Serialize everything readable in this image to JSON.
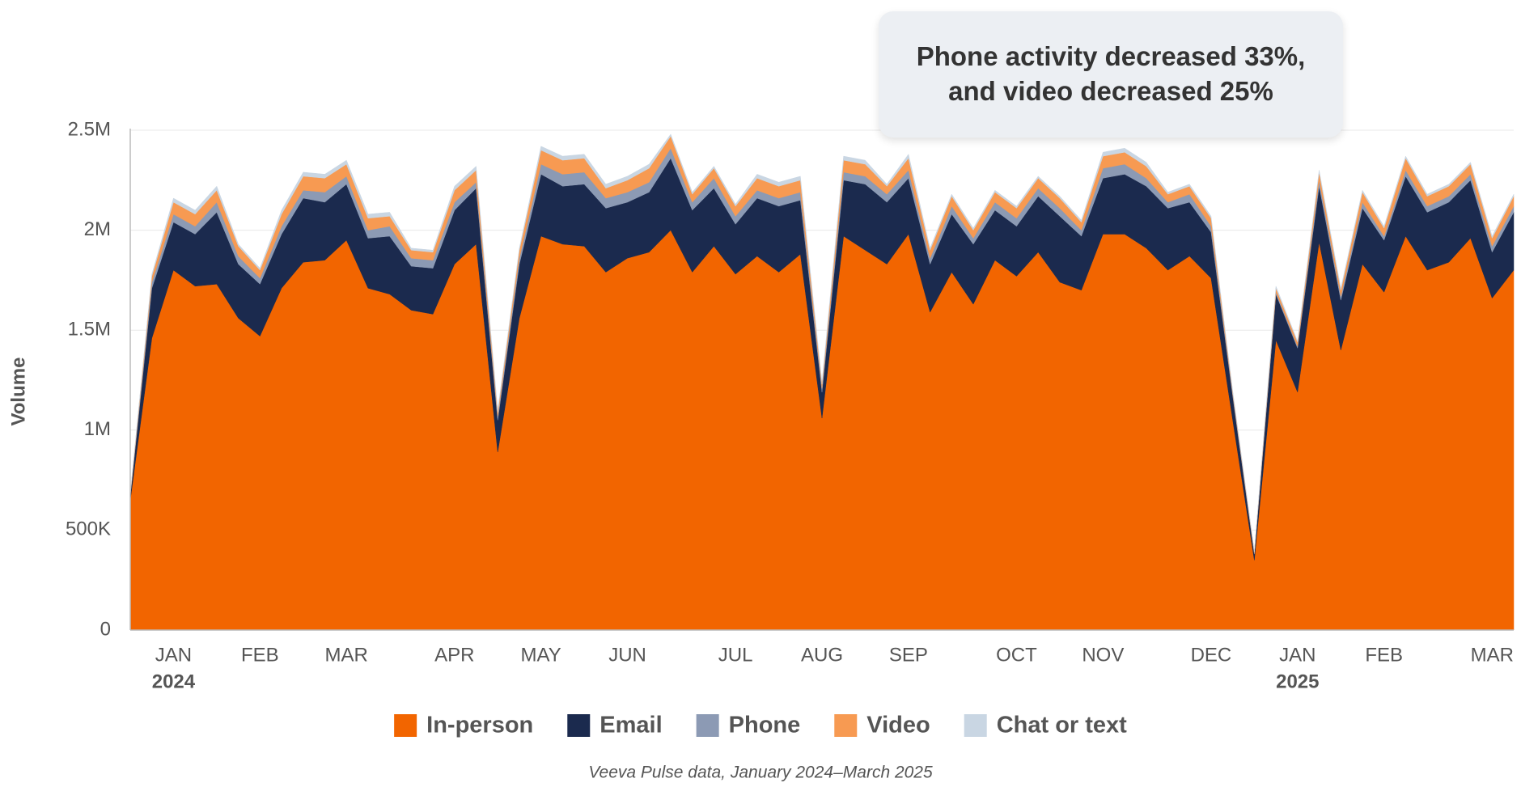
{
  "chart_data": {
    "type": "stacked_area",
    "annotation": [
      "Phone activity decreased 33%,",
      "and video decreased 25%"
    ],
    "y_label": "Volume",
    "source": "Veeva Pulse data, January 2024–March 2025",
    "categories": [
      null,
      null,
      "JAN",
      null,
      null,
      null,
      "FEB",
      null,
      null,
      null,
      "MAR",
      null,
      null,
      null,
      null,
      "APR",
      null,
      null,
      null,
      "MAY",
      null,
      null,
      null,
      "JUN",
      null,
      null,
      null,
      null,
      "JUL",
      null,
      null,
      null,
      "AUG",
      null,
      null,
      null,
      "SEP",
      null,
      null,
      null,
      null,
      "OCT",
      null,
      null,
      null,
      "NOV",
      null,
      null,
      null,
      null,
      "DEC",
      null,
      null,
      null,
      "JAN",
      null,
      null,
      null,
      "FEB",
      null,
      null,
      null,
      null,
      "MAR",
      null
    ],
    "category_years": [
      null,
      null,
      "2024",
      null,
      null,
      null,
      null,
      null,
      null,
      null,
      null,
      null,
      null,
      null,
      null,
      null,
      null,
      null,
      null,
      null,
      null,
      null,
      null,
      null,
      null,
      null,
      null,
      null,
      null,
      null,
      null,
      null,
      null,
      null,
      null,
      null,
      null,
      null,
      null,
      null,
      null,
      null,
      null,
      null,
      null,
      null,
      null,
      null,
      null,
      null,
      null,
      null,
      null,
      null,
      "2025",
      null,
      null,
      null,
      null,
      null,
      null,
      null,
      null,
      null,
      null
    ],
    "ylim": [
      0,
      2500000
    ],
    "yticks": [
      0,
      {
        "value": 500000,
        "label": "500K"
      },
      {
        "value": 1000000,
        "label": "1M"
      },
      {
        "value": 1500000,
        "label": "1.5M"
      },
      {
        "value": 2000000,
        "label": "2M"
      },
      {
        "value": 2500000,
        "label": "2.5M"
      }
    ],
    "grid": true,
    "series": [
      {
        "name": "In-person",
        "color": "#f26500",
        "values": [
          650000,
          1460000,
          1800000,
          1720000,
          1730000,
          1560000,
          1470000,
          1710000,
          1840000,
          1850000,
          1950000,
          1710000,
          1680000,
          1600000,
          1580000,
          1830000,
          1930000,
          890000,
          1560000,
          1970000,
          1930000,
          1920000,
          1790000,
          1860000,
          1890000,
          2000000,
          1790000,
          1920000,
          1780000,
          1870000,
          1790000,
          1880000,
          1060000,
          1970000,
          1900000,
          1830000,
          1980000,
          1590000,
          1790000,
          1630000,
          1850000,
          1770000,
          1890000,
          1740000,
          1700000,
          1980000,
          1980000,
          1910000,
          1800000,
          1870000,
          1760000,
          1050000,
          350000,
          1450000,
          1190000,
          1940000,
          1400000,
          1830000,
          1690000,
          1970000,
          1800000,
          1840000,
          1960000,
          1660000,
          1800000
        ]
      },
      {
        "name": "Email",
        "color": "#1b2a4e",
        "values": [
          20000,
          250000,
          240000,
          260000,
          360000,
          270000,
          260000,
          270000,
          320000,
          290000,
          280000,
          250000,
          290000,
          220000,
          230000,
          270000,
          280000,
          160000,
          270000,
          310000,
          290000,
          310000,
          320000,
          280000,
          300000,
          360000,
          310000,
          290000,
          250000,
          290000,
          330000,
          270000,
          130000,
          280000,
          330000,
          310000,
          280000,
          240000,
          290000,
          300000,
          250000,
          250000,
          280000,
          330000,
          270000,
          280000,
          300000,
          310000,
          310000,
          270000,
          230000,
          120000,
          30000,
          230000,
          220000,
          280000,
          250000,
          280000,
          260000,
          300000,
          290000,
          300000,
          290000,
          230000,
          290000
        ]
      },
      {
        "name": "Phone",
        "color": "#8c9ab4",
        "values": [
          5000,
          30000,
          40000,
          40000,
          50000,
          40000,
          30000,
          40000,
          40000,
          50000,
          40000,
          40000,
          50000,
          40000,
          40000,
          40000,
          30000,
          20000,
          30000,
          50000,
          60000,
          60000,
          50000,
          50000,
          50000,
          50000,
          40000,
          50000,
          40000,
          40000,
          40000,
          40000,
          20000,
          40000,
          40000,
          40000,
          40000,
          30000,
          40000,
          30000,
          40000,
          40000,
          40000,
          40000,
          30000,
          50000,
          50000,
          40000,
          30000,
          40000,
          30000,
          10000,
          5000,
          10000,
          10000,
          30000,
          20000,
          30000,
          20000,
          30000,
          30000,
          30000,
          30000,
          30000,
          30000
        ]
      },
      {
        "name": "Video",
        "color": "#f79a52",
        "values": [
          5000,
          30000,
          60000,
          60000,
          60000,
          50000,
          40000,
          60000,
          70000,
          70000,
          60000,
          60000,
          50000,
          40000,
          40000,
          60000,
          60000,
          20000,
          40000,
          70000,
          70000,
          70000,
          50000,
          60000,
          70000,
          60000,
          40000,
          50000,
          50000,
          60000,
          60000,
          60000,
          20000,
          60000,
          60000,
          40000,
          60000,
          40000,
          50000,
          40000,
          50000,
          50000,
          50000,
          50000,
          40000,
          60000,
          60000,
          60000,
          40000,
          40000,
          40000,
          10000,
          5000,
          20000,
          20000,
          40000,
          30000,
          50000,
          40000,
          60000,
          50000,
          50000,
          50000,
          40000,
          50000
        ]
      },
      {
        "name": "Chat or text",
        "color": "#c9d6e3",
        "values": [
          2000,
          10000,
          20000,
          20000,
          20000,
          10000,
          10000,
          20000,
          20000,
          20000,
          20000,
          20000,
          20000,
          10000,
          10000,
          20000,
          20000,
          10000,
          10000,
          20000,
          20000,
          20000,
          20000,
          20000,
          20000,
          10000,
          10000,
          10000,
          10000,
          20000,
          20000,
          20000,
          10000,
          20000,
          20000,
          10000,
          20000,
          10000,
          10000,
          10000,
          10000,
          10000,
          10000,
          10000,
          10000,
          20000,
          20000,
          20000,
          10000,
          10000,
          10000,
          5000,
          2000,
          10000,
          5000,
          10000,
          10000,
          10000,
          10000,
          10000,
          10000,
          10000,
          10000,
          10000,
          10000
        ]
      }
    ]
  }
}
